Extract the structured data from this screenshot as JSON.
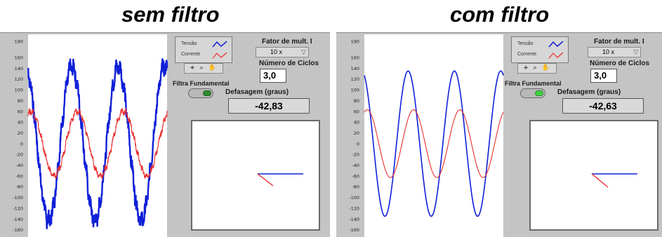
{
  "panels": [
    {
      "title": "sem filtro",
      "legend": {
        "tensao_label": "Tensão",
        "corrente_label": "Corrente"
      },
      "fator_label": "Fator de mult. I",
      "fator_value": "10 x",
      "toolbar_icons": "+ ⌕ ✋",
      "ciclos_label": "Número de Ciclos",
      "ciclos_value": "3,0",
      "filtra_label": "Filtra Fundamental",
      "defasagem_label": "Defasagem (graus)",
      "defasagem_value": "-42,83",
      "filter_on": false
    },
    {
      "title": "com filtro",
      "legend": {
        "tensao_label": "Tensão",
        "corrente_label": "Corrente"
      },
      "fator_label": "Fator de mult. I",
      "fator_value": "10 x",
      "toolbar_icons": "+ ⌕ ✋",
      "ciclos_label": "Número de Ciclos",
      "ciclos_value": "3,0",
      "filtra_label": "Filtra Fundamental",
      "defasagem_label": "Defasagem (graus)",
      "defasagem_value": "-42,63",
      "filter_on": true
    }
  ],
  "chart_data": [
    {
      "type": "line",
      "title": "",
      "xlabel": "",
      "ylabel": "",
      "ylim": [
        -180,
        190
      ],
      "yticks": [
        190,
        160,
        140,
        120,
        100,
        80,
        60,
        40,
        20,
        0,
        -20,
        -40,
        -60,
        -80,
        -100,
        -120,
        -140,
        -160,
        -180
      ],
      "cycles": 3,
      "series": [
        {
          "amplitude": 143,
          "phase_deg": 0,
          "noisy": true,
          "color": "#1020d8"
        },
        {
          "amplitude": 60,
          "phase_deg": -42.83,
          "noisy": true,
          "color": "#e83030"
        }
      ]
    },
    {
      "type": "line",
      "title": "",
      "xlabel": "",
      "ylabel": "",
      "ylim": [
        -180,
        190
      ],
      "yticks": [
        190,
        160,
        140,
        120,
        100,
        80,
        60,
        40,
        20,
        0,
        -20,
        -40,
        -60,
        -80,
        -100,
        -120,
        -140,
        -160,
        -180
      ],
      "cycles": 3,
      "series": [
        {
          "amplitude": 135,
          "phase_deg": 0,
          "noisy": false,
          "color": "#1020d8"
        },
        {
          "amplitude": 63,
          "phase_deg": -42.63,
          "noisy": false,
          "color": "#e83030"
        }
      ]
    }
  ],
  "colors": {
    "tensao": "#1020d8",
    "corrente": "#e83030",
    "panel_bg": "#c4c4c4"
  }
}
